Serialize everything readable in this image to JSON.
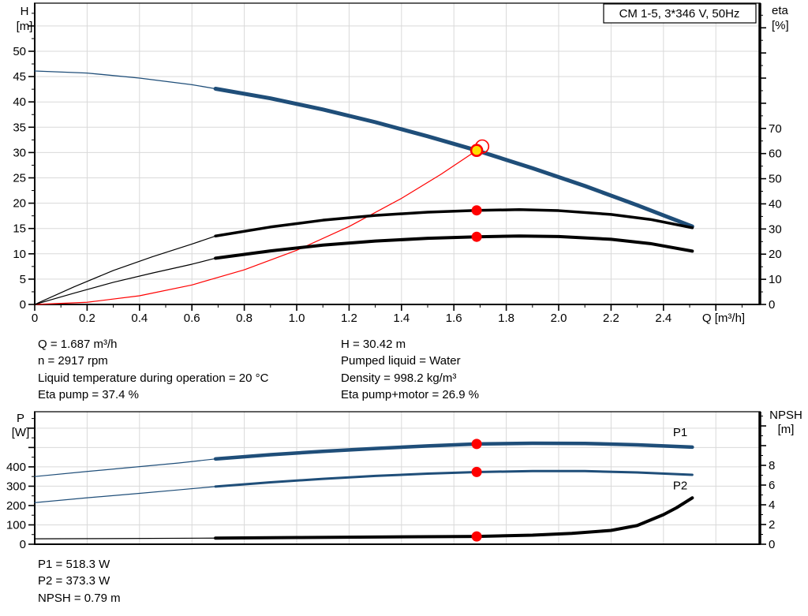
{
  "title_box": {
    "label": "CM 1-5, 3*346 V, 50Hz"
  },
  "colors": {
    "curve_blue": "#1f4e79",
    "text_blue": "#1f5fa8",
    "red": "#ff0000",
    "yellow_fill": "#ffdf00",
    "grid": "#d9d9d9",
    "axis": "#000000"
  },
  "info": {
    "top_left": [
      "Q = 1.687 m³/h",
      "n = 2917 rpm",
      "Liquid temperature during operation = 20 °C",
      "Eta pump = 37.4 %"
    ],
    "top_right": [
      "H = 30.42 m",
      "Pumped liquid = Water",
      "Density = 998.2 kg/m³",
      "Eta pump+motor = 26.9 %"
    ],
    "bottom": [
      "P1 = 518.3 W",
      "P2 = 373.3 W",
      "NPSH = 0.79 m"
    ]
  },
  "duty_point": {
    "Q_m3h": 1.687,
    "H_m": 30.42,
    "eta_pump_pct": 37.4,
    "eta_pump_motor_pct": 26.9,
    "P1_W": 518.3,
    "P2_W": 373.3,
    "NPSH_m": 0.79,
    "n_rpm": 2917
  },
  "chart_data": [
    {
      "type": "line",
      "title": "CM 1-5, 3*346 V, 50Hz",
      "x_axis": {
        "label": "Q [m³/h]",
        "min": 0,
        "max": 2.768,
        "major_step": 0.2,
        "minor_step": 0.1,
        "tick_labels": [
          "0",
          "0.2",
          "0.4",
          "0.6",
          "0.8",
          "1.0",
          "1.2",
          "1.4",
          "1.6",
          "1.8",
          "2.0",
          "2.2",
          "2.4"
        ]
      },
      "y_left": {
        "label_lines": [
          "H",
          "[m]"
        ],
        "min": 0,
        "max": 59.5,
        "major_step": 5,
        "minor_step": 2.5,
        "tick_labels": [
          "0",
          "5",
          "10",
          "15",
          "20",
          "25",
          "30",
          "35",
          "40",
          "45",
          "50"
        ]
      },
      "y_right": {
        "label_lines": [
          "eta",
          "[%]"
        ],
        "min": 0,
        "max": 119.8,
        "major_step": 10,
        "minor_step": 5,
        "tick_labels": [
          "0",
          "10",
          "20",
          "30",
          "40",
          "50",
          "60",
          "70"
        ]
      },
      "grid": true,
      "series": [
        {
          "name": "pump-curve-low",
          "axis": "left",
          "color": "blue",
          "width": 1.3,
          "points": [
            [
              0,
              46.1
            ],
            [
              0.2,
              45.7
            ],
            [
              0.4,
              44.7
            ],
            [
              0.6,
              43.4
            ],
            [
              0.69,
              42.6
            ]
          ]
        },
        {
          "name": "pump-curve",
          "axis": "left",
          "color": "blue",
          "width": 5,
          "points": [
            [
              0.69,
              42.6
            ],
            [
              0.9,
              40.7
            ],
            [
              1.1,
              38.5
            ],
            [
              1.3,
              36.0
            ],
            [
              1.5,
              33.2
            ],
            [
              1.687,
              30.42
            ],
            [
              1.9,
              26.9
            ],
            [
              2.1,
              23.4
            ],
            [
              2.3,
              19.6
            ],
            [
              2.51,
              15.4
            ]
          ]
        },
        {
          "name": "system-curve",
          "axis": "left",
          "color": "red",
          "width": 1.2,
          "points": [
            [
              0,
              0
            ],
            [
              0.2,
              0.43
            ],
            [
              0.4,
              1.71
            ],
            [
              0.6,
              3.85
            ],
            [
              0.8,
              6.84
            ],
            [
              1.0,
              10.69
            ],
            [
              1.2,
              15.39
            ],
            [
              1.4,
              20.95
            ],
            [
              1.55,
              25.68
            ],
            [
              1.687,
              30.42
            ]
          ]
        },
        {
          "name": "eta-pump-curve-low",
          "axis": "right",
          "color": "black",
          "width": 1.2,
          "points": [
            [
              0,
              0
            ],
            [
              0.15,
              7
            ],
            [
              0.3,
              13.5
            ],
            [
              0.45,
              19
            ],
            [
              0.6,
              24
            ],
            [
              0.69,
              27.2
            ]
          ]
        },
        {
          "name": "eta-pump-curve",
          "axis": "right",
          "color": "black",
          "width": 3.5,
          "points": [
            [
              0.69,
              27.2
            ],
            [
              0.9,
              30.8
            ],
            [
              1.1,
              33.5
            ],
            [
              1.3,
              35.4
            ],
            [
              1.5,
              36.7
            ],
            [
              1.687,
              37.4
            ],
            [
              1.85,
              37.7
            ],
            [
              2.0,
              37.3
            ],
            [
              2.2,
              35.8
            ],
            [
              2.35,
              33.8
            ],
            [
              2.51,
              30.5
            ]
          ]
        },
        {
          "name": "eta-pump-motor-curve-low",
          "axis": "right",
          "color": "black",
          "width": 1.2,
          "points": [
            [
              0,
              0
            ],
            [
              0.15,
              4.5
            ],
            [
              0.3,
              8.8
            ],
            [
              0.45,
              12.5
            ],
            [
              0.6,
              16
            ],
            [
              0.69,
              18.4
            ]
          ]
        },
        {
          "name": "eta-pump-motor-curve",
          "axis": "right",
          "color": "black",
          "width": 4,
          "points": [
            [
              0.69,
              18.4
            ],
            [
              0.9,
              21.3
            ],
            [
              1.1,
              23.6
            ],
            [
              1.3,
              25.2
            ],
            [
              1.5,
              26.3
            ],
            [
              1.687,
              26.9
            ],
            [
              1.85,
              27.2
            ],
            [
              2.0,
              27.0
            ],
            [
              2.2,
              25.9
            ],
            [
              2.35,
              24.2
            ],
            [
              2.51,
              21.2
            ]
          ]
        }
      ],
      "markers": [
        {
          "kind": "open_ring",
          "q": 1.708,
          "value": 31.2,
          "y_axis": "left"
        },
        {
          "kind": "duty",
          "q": 1.687,
          "value": 30.42,
          "y_axis": "left"
        },
        {
          "kind": "dot",
          "q": 1.687,
          "value": 37.4,
          "y_axis": "right"
        },
        {
          "kind": "dot",
          "q": 1.687,
          "value": 26.9,
          "y_axis": "right"
        }
      ]
    },
    {
      "type": "line",
      "title": "Power and NPSH",
      "x_axis": {
        "label": "",
        "min": 0,
        "max": 2.768,
        "major_step": 0.2,
        "minor_step": 0.1,
        "tick_labels": []
      },
      "y_left": {
        "label_lines": [
          "P",
          "[W]"
        ],
        "min": 0,
        "max": 685,
        "major_step": 100,
        "minor_step": 50,
        "tick_labels": [
          "0",
          "100",
          "200",
          "300",
          "400"
        ]
      },
      "y_right": {
        "label_lines": [
          "NPSH",
          "[m]"
        ],
        "min": 0,
        "max": 13.44,
        "major_step": 2,
        "minor_step": 1,
        "tick_labels": [
          "0",
          "2",
          "4",
          "6",
          "8"
        ]
      },
      "grid": true,
      "series": [
        {
          "name": "p1-curve-low",
          "axis": "left",
          "color": "blue",
          "width": 1.2,
          "points": [
            [
              0,
              350
            ],
            [
              0.2,
              376
            ],
            [
              0.4,
              401
            ],
            [
              0.55,
              420
            ],
            [
              0.69,
              441
            ]
          ]
        },
        {
          "name": "p1-curve",
          "axis": "left",
          "color": "blue",
          "width": 4.5,
          "points": [
            [
              0.69,
              441
            ],
            [
              0.9,
              463
            ],
            [
              1.1,
              480
            ],
            [
              1.3,
              495
            ],
            [
              1.5,
              508
            ],
            [
              1.687,
              518.3
            ],
            [
              1.9,
              522
            ],
            [
              2.1,
              521
            ],
            [
              2.3,
              514
            ],
            [
              2.51,
              502
            ]
          ]
        },
        {
          "name": "p2-curve-low",
          "axis": "left",
          "color": "blue",
          "width": 1.2,
          "points": [
            [
              0,
              215
            ],
            [
              0.2,
              240
            ],
            [
              0.4,
              263
            ],
            [
              0.55,
              281
            ],
            [
              0.69,
              298
            ]
          ]
        },
        {
          "name": "p2-curve",
          "axis": "left",
          "color": "blue",
          "width": 3,
          "points": [
            [
              0.69,
              298
            ],
            [
              0.9,
              320
            ],
            [
              1.1,
              338
            ],
            [
              1.3,
              353
            ],
            [
              1.5,
              365
            ],
            [
              1.687,
              373.3
            ],
            [
              1.9,
              378
            ],
            [
              2.1,
              378
            ],
            [
              2.3,
              371
            ],
            [
              2.51,
              359
            ]
          ]
        },
        {
          "name": "npsh-curve-low",
          "axis": "right",
          "color": "black",
          "width": 1.2,
          "points": [
            [
              0,
              0.55
            ],
            [
              0.35,
              0.58
            ],
            [
              0.69,
              0.62
            ]
          ]
        },
        {
          "name": "npsh-curve",
          "axis": "right",
          "color": "black",
          "width": 4,
          "points": [
            [
              0.69,
              0.62
            ],
            [
              1.0,
              0.68
            ],
            [
              1.35,
              0.74
            ],
            [
              1.687,
              0.79
            ],
            [
              1.9,
              0.92
            ],
            [
              2.05,
              1.1
            ],
            [
              2.2,
              1.4
            ],
            [
              2.3,
              1.9
            ],
            [
              2.4,
              3.0
            ],
            [
              2.45,
              3.7
            ],
            [
              2.51,
              4.7
            ]
          ]
        }
      ],
      "series_labels": [
        {
          "text": "P1",
          "q": 2.464,
          "value": 558,
          "axis": "left"
        },
        {
          "text": "P2",
          "q": 2.464,
          "value": 284,
          "axis": "left"
        }
      ],
      "markers": [
        {
          "kind": "dot",
          "q": 1.687,
          "value": 518.3,
          "y_axis": "left"
        },
        {
          "kind": "dot",
          "q": 1.687,
          "value": 373.3,
          "y_axis": "left"
        },
        {
          "kind": "dot",
          "q": 1.687,
          "value": 0.79,
          "y_axis": "right"
        }
      ]
    }
  ]
}
